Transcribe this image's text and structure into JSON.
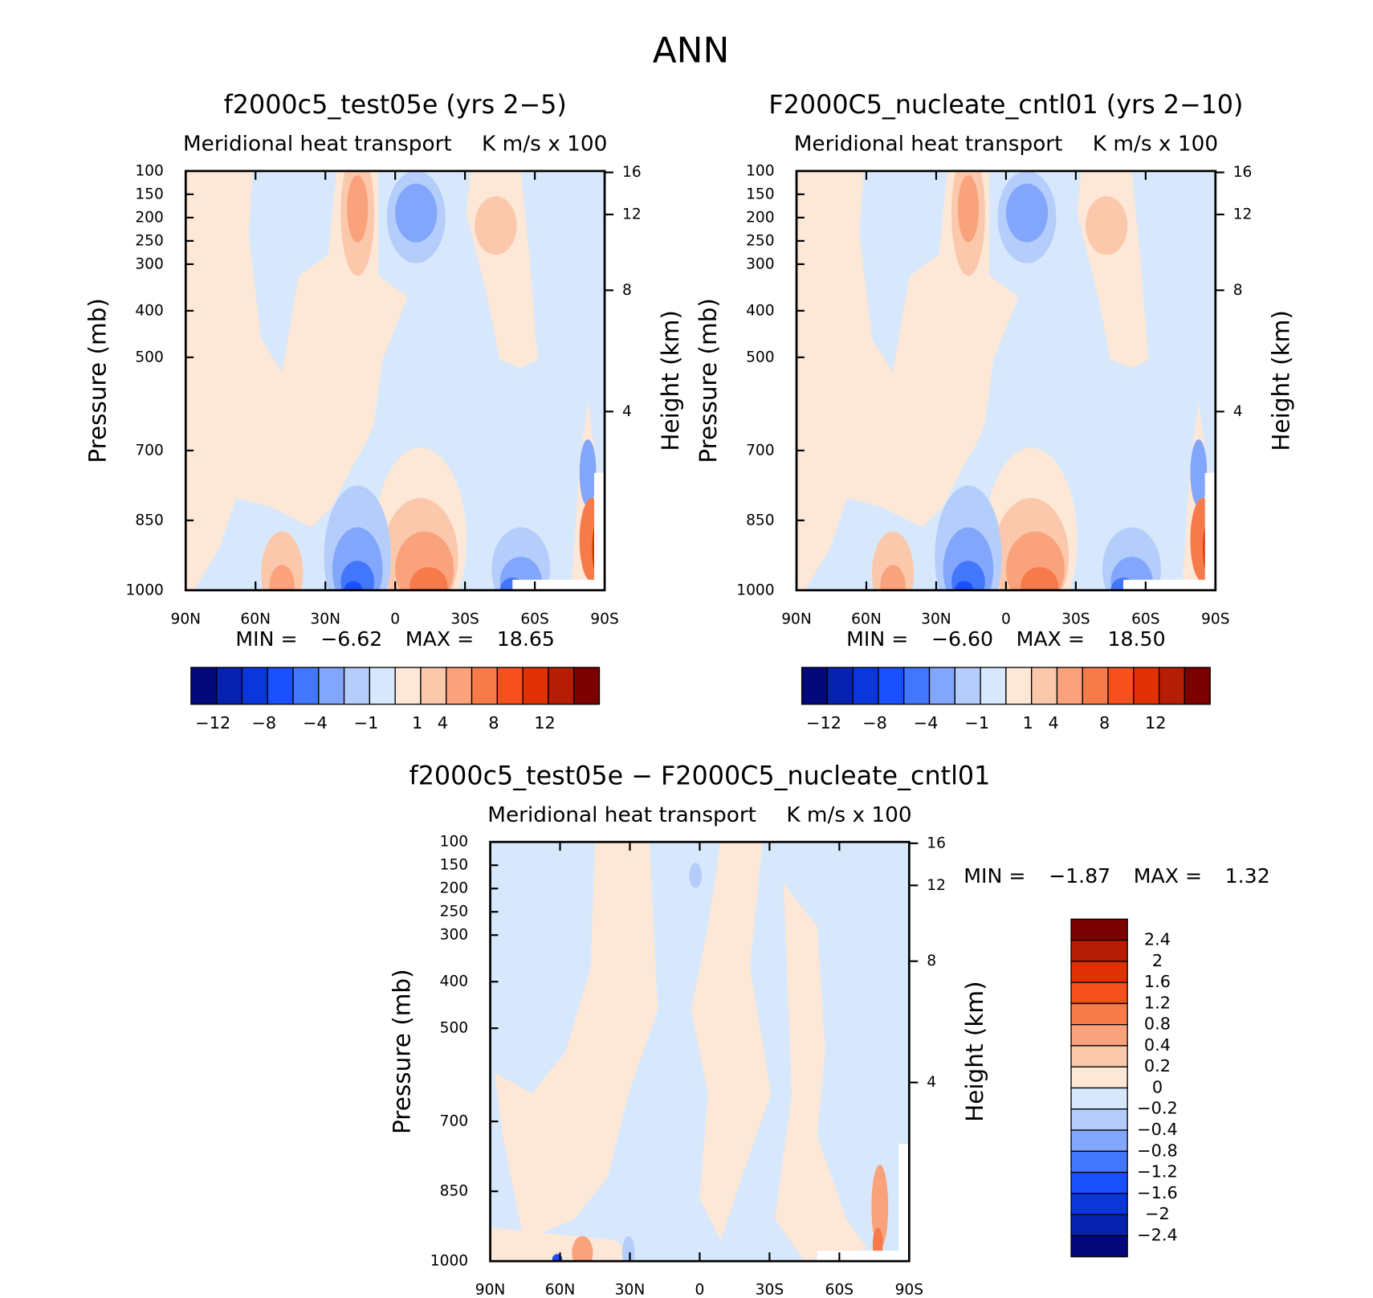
{
  "title": "ANN",
  "chart_data": [
    {
      "type": "contour",
      "title": "f2000c5_test05e (yrs 2−5)",
      "subtitle_left": "Meridional heat transport",
      "subtitle_right": "K m/s x 100",
      "ylabel": "Pressure (mb)",
      "y2label": "Height (km)",
      "ylim": [
        100,
        1000
      ],
      "yticks": [
        100,
        150,
        200,
        250,
        300,
        400,
        500,
        700,
        850,
        1000
      ],
      "y2ticks": [
        4,
        8,
        12,
        16
      ],
      "xlim": [
        90,
        -90
      ],
      "xticks": [
        {
          "value": 90,
          "label": "90N"
        },
        {
          "value": 60,
          "label": "60N"
        },
        {
          "value": 30,
          "label": "30N"
        },
        0,
        {
          "value": -30,
          "label": "30S"
        },
        {
          "value": -60,
          "label": "60S"
        },
        {
          "value": -90,
          "label": "90S"
        }
      ],
      "min_label": "MIN =",
      "min": {
        "value": -6.62,
        "label": "−6.62"
      },
      "max_label": "MAX =",
      "max": 18.65,
      "colorbar": {
        "orientation": "horizontal",
        "colors": [
          "#03087a",
          "#0722ae",
          "#0a36dc",
          "#1a50ff",
          "#4277fb",
          "#82a6fb",
          "#b5cdfb",
          "#d7e8fc",
          "#fde7d6",
          "#fbc8ab",
          "#f9a27b",
          "#f77a4a",
          "#f5501d",
          "#df3104",
          "#b51e04",
          "#7c0000"
        ],
        "labels": [
          {
            "value": -12,
            "label": "−12"
          },
          {
            "value": -8,
            "label": "−8"
          },
          {
            "value": -4,
            "label": "−4"
          },
          {
            "value": -1,
            "label": "−1"
          },
          1,
          4,
          8,
          12
        ]
      }
    },
    {
      "type": "contour",
      "title": "F2000C5_nucleate_cntl01 (yrs 2−10)",
      "subtitle_left": "Meridional heat transport",
      "subtitle_right": "K m/s x 100",
      "ylabel": "Pressure (mb)",
      "y2label": "Height (km)",
      "ylim": [
        100,
        1000
      ],
      "yticks": [
        100,
        150,
        200,
        250,
        300,
        400,
        500,
        700,
        850,
        1000
      ],
      "y2ticks": [
        4,
        8,
        12,
        16
      ],
      "xlim": [
        90,
        -90
      ],
      "xticks": [
        {
          "value": 90,
          "label": "90N"
        },
        {
          "value": 60,
          "label": "60N"
        },
        {
          "value": 30,
          "label": "30N"
        },
        0,
        {
          "value": -30,
          "label": "30S"
        },
        {
          "value": -60,
          "label": "60S"
        },
        {
          "value": -90,
          "label": "90S"
        }
      ],
      "min_label": "MIN =",
      "min": {
        "value": -6.6,
        "label": "−6.60"
      },
      "max_label": "MAX =",
      "max": {
        "value": 18.5,
        "label": "18.50"
      },
      "colorbar": {
        "orientation": "horizontal",
        "colors": [
          "#03087a",
          "#0722ae",
          "#0a36dc",
          "#1a50ff",
          "#4277fb",
          "#82a6fb",
          "#b5cdfb",
          "#d7e8fc",
          "#fde7d6",
          "#fbc8ab",
          "#f9a27b",
          "#f77a4a",
          "#f5501d",
          "#df3104",
          "#b51e04",
          "#7c0000"
        ],
        "labels": [
          {
            "value": -12,
            "label": "−12"
          },
          {
            "value": -8,
            "label": "−8"
          },
          {
            "value": -4,
            "label": "−4"
          },
          {
            "value": -1,
            "label": "−1"
          },
          1,
          4,
          8,
          12
        ]
      }
    },
    {
      "type": "contour-diff",
      "title": "f2000c5_test05e − F2000C5_nucleate_cntl01",
      "subtitle_left": "Meridional heat transport",
      "subtitle_right": "K m/s x 100",
      "ylabel": "Pressure (mb)",
      "y2label": "Height (km)",
      "ylim": [
        100,
        1000
      ],
      "yticks": [
        100,
        150,
        200,
        250,
        300,
        400,
        500,
        700,
        850,
        1000
      ],
      "y2ticks": [
        4,
        8,
        12,
        16
      ],
      "xlim": [
        90,
        -90
      ],
      "xticks": [
        {
          "value": 90,
          "label": "90N"
        },
        {
          "value": 60,
          "label": "60N"
        },
        {
          "value": 30,
          "label": "30N"
        },
        0,
        {
          "value": -30,
          "label": "30S"
        },
        {
          "value": -60,
          "label": "60S"
        },
        {
          "value": -90,
          "label": "90S"
        }
      ],
      "min_label": "MIN =",
      "min": {
        "value": -1.87,
        "label": "−1.87"
      },
      "max_label": "MAX =",
      "max": 1.32,
      "colorbar": {
        "orientation": "vertical",
        "colors": [
          "#7c0000",
          "#b51e04",
          "#df3104",
          "#f5501d",
          "#f77a4a",
          "#f9a27b",
          "#fbc8ab",
          "#fde7d6",
          "#d7e8fc",
          "#b5cdfb",
          "#82a6fb",
          "#4277fb",
          "#1a50ff",
          "#0a36dc",
          "#0722ae",
          "#03087a"
        ],
        "labels": [
          2.4,
          2,
          1.6,
          1.2,
          0.8,
          0.4,
          0.2,
          0,
          {
            "value": -0.2,
            "label": "−0.2"
          },
          {
            "value": -0.4,
            "label": "−0.4"
          },
          {
            "value": -0.8,
            "label": "−0.8"
          },
          {
            "value": -1.2,
            "label": "−1.2"
          },
          {
            "value": -1.6,
            "label": "−1.6"
          },
          {
            "value": -2,
            "label": "−2"
          },
          {
            "value": -2.4,
            "label": "−2.4"
          }
        ]
      }
    }
  ]
}
